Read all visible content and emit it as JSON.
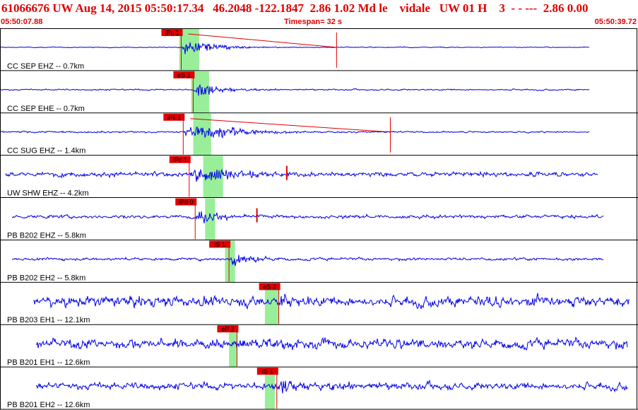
{
  "header": {
    "title": "61066676 UW Aug 14, 2015 05:50:17.34   46.2048 -122.1847  2.86 1.02 Md le    vidale   UW 01 H    3  - - ---  2.86 0.00",
    "start_time": "05:50:07.88",
    "timespan_label": "Timespan=  32 s",
    "end_time": "05:50:39.72"
  },
  "colors": {
    "trace": "#0000e6",
    "pick": "#e00000",
    "highlight": "#99ee99",
    "panel_border": "#000000",
    "title": "#e00000"
  },
  "chart_data": {
    "type": "line",
    "x_range_s": [
      0,
      32
    ],
    "start_time": "05:50:07.88",
    "end_time": "05:50:39.72",
    "traces": [
      {
        "label": "CC SEP EHZ -- 0.7km",
        "pick_label": "iPc 1",
        "pick_s": 9.1,
        "extra_picks_s": [],
        "end_marker_s": 16.9,
        "green_band_s": [
          9.0,
          10.0
        ],
        "data_start_s": 0.0,
        "data_end_s": 29.6,
        "noise": 0.04,
        "event_amp": 0.9,
        "decay": 0.8,
        "coda": true
      },
      {
        "label": "CC SEP EHE -- 0.7km",
        "pick_label": "eS 2",
        "pick_s": 9.7,
        "extra_picks_s": [],
        "end_marker_s": null,
        "green_band_s": [
          9.6,
          10.5
        ],
        "data_start_s": 0.0,
        "data_end_s": 29.6,
        "noise": 0.07,
        "event_amp": 0.75,
        "decay": 0.9,
        "coda": false
      },
      {
        "label": "CC SUG EHZ -- 1.4km",
        "pick_label": "iPc 1",
        "pick_s": 9.2,
        "extra_picks_s": [],
        "end_marker_s": 19.6,
        "green_band_s": [
          9.7,
          10.6
        ],
        "data_start_s": 0.0,
        "data_end_s": 29.6,
        "noise": 0.08,
        "event_amp": 0.7,
        "decay": 0.45,
        "coda": true
      },
      {
        "label": "UW SHW EHZ -- 4.2km",
        "pick_label": "iPc 1",
        "pick_s": 9.5,
        "extra_picks_s": [
          14.4
        ],
        "end_marker_s": null,
        "green_band_s": [
          10.2,
          11.2
        ],
        "data_start_s": 0.3,
        "data_end_s": 30.0,
        "noise": 0.22,
        "event_amp": 0.95,
        "decay": 0.55,
        "coda": false
      },
      {
        "label": "PB B202 EHZ -- 5.8km",
        "pick_label": "iPd 0",
        "pick_s": 9.8,
        "extra_picks_s": [
          12.9
        ],
        "end_marker_s": null,
        "green_band_s": [
          10.3,
          10.8
        ],
        "data_start_s": 0.6,
        "data_end_s": 30.3,
        "noise": 0.16,
        "event_amp": 0.8,
        "decay": 1.2,
        "coda": false
      },
      {
        "label": "PB B202 EH2 -- 5.8km",
        "pick_label": "iS 1",
        "pick_s": 11.5,
        "extra_picks_s": [],
        "end_marker_s": null,
        "green_band_s": [
          11.3,
          11.8
        ],
        "data_start_s": 0.6,
        "data_end_s": 30.3,
        "noise": 0.13,
        "event_amp": 0.7,
        "decay": 1.1,
        "coda": false
      },
      {
        "label": "PB B203 EH1 -- 12.1km",
        "pick_label": "eS 2",
        "pick_s": 14.0,
        "extra_picks_s": [],
        "end_marker_s": null,
        "green_band_s": [
          13.3,
          14.0
        ],
        "data_start_s": 1.7,
        "data_end_s": 31.6,
        "noise": 0.5,
        "event_amp": 0.5,
        "decay": 0.8,
        "coda": false
      },
      {
        "label": "PB B201 EH1 -- 12.6km",
        "pick_label": "eP 2",
        "pick_s": 11.9,
        "extra_picks_s": [],
        "end_marker_s": null,
        "green_band_s": [
          11.5,
          11.9
        ],
        "data_start_s": 1.8,
        "data_end_s": 31.5,
        "noise": 0.45,
        "event_amp": 0.3,
        "decay": 0.6,
        "coda": false
      },
      {
        "label": "PB B201 EH2 -- 12.6km",
        "pick_label": "iS 1",
        "pick_s": 13.9,
        "extra_picks_s": [],
        "end_marker_s": null,
        "green_band_s": [
          13.3,
          13.8
        ],
        "data_start_s": 1.8,
        "data_end_s": 31.5,
        "noise": 0.35,
        "event_amp": 0.75,
        "decay": 0.9,
        "coda": false
      }
    ]
  }
}
